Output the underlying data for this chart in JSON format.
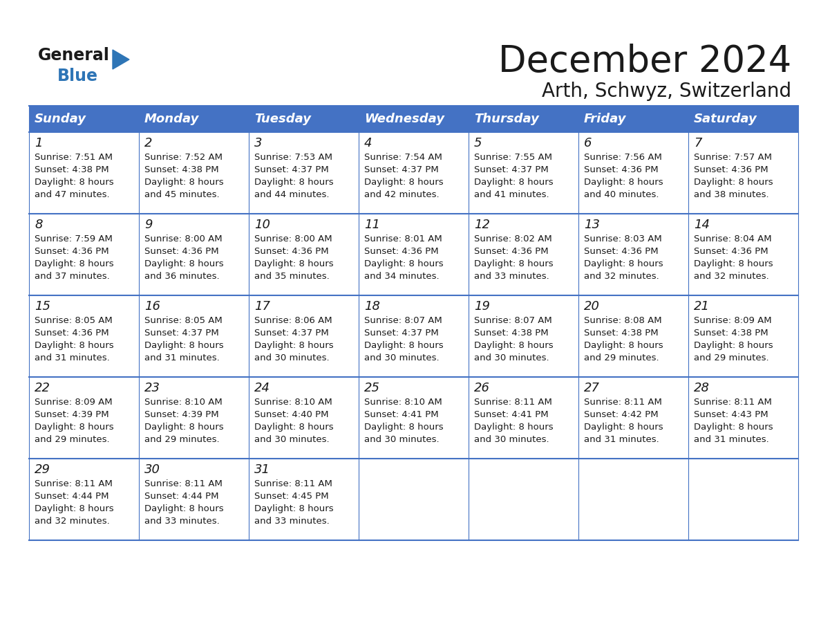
{
  "title": "December 2024",
  "subtitle": "Arth, Schwyz, Switzerland",
  "header_color": "#4472C4",
  "header_text_color": "#FFFFFF",
  "border_color": "#4472C4",
  "day_names": [
    "Sunday",
    "Monday",
    "Tuesday",
    "Wednesday",
    "Thursday",
    "Friday",
    "Saturday"
  ],
  "weeks": [
    [
      {
        "day": 1,
        "sunrise": "7:51 AM",
        "sunset": "4:38 PM",
        "daylight": "8 hours and 47 minutes."
      },
      {
        "day": 2,
        "sunrise": "7:52 AM",
        "sunset": "4:38 PM",
        "daylight": "8 hours and 45 minutes."
      },
      {
        "day": 3,
        "sunrise": "7:53 AM",
        "sunset": "4:37 PM",
        "daylight": "8 hours and 44 minutes."
      },
      {
        "day": 4,
        "sunrise": "7:54 AM",
        "sunset": "4:37 PM",
        "daylight": "8 hours and 42 minutes."
      },
      {
        "day": 5,
        "sunrise": "7:55 AM",
        "sunset": "4:37 PM",
        "daylight": "8 hours and 41 minutes."
      },
      {
        "day": 6,
        "sunrise": "7:56 AM",
        "sunset": "4:36 PM",
        "daylight": "8 hours and 40 minutes."
      },
      {
        "day": 7,
        "sunrise": "7:57 AM",
        "sunset": "4:36 PM",
        "daylight": "8 hours and 38 minutes."
      }
    ],
    [
      {
        "day": 8,
        "sunrise": "7:59 AM",
        "sunset": "4:36 PM",
        "daylight": "8 hours and 37 minutes."
      },
      {
        "day": 9,
        "sunrise": "8:00 AM",
        "sunset": "4:36 PM",
        "daylight": "8 hours and 36 minutes."
      },
      {
        "day": 10,
        "sunrise": "8:00 AM",
        "sunset": "4:36 PM",
        "daylight": "8 hours and 35 minutes."
      },
      {
        "day": 11,
        "sunrise": "8:01 AM",
        "sunset": "4:36 PM",
        "daylight": "8 hours and 34 minutes."
      },
      {
        "day": 12,
        "sunrise": "8:02 AM",
        "sunset": "4:36 PM",
        "daylight": "8 hours and 33 minutes."
      },
      {
        "day": 13,
        "sunrise": "8:03 AM",
        "sunset": "4:36 PM",
        "daylight": "8 hours and 32 minutes."
      },
      {
        "day": 14,
        "sunrise": "8:04 AM",
        "sunset": "4:36 PM",
        "daylight": "8 hours and 32 minutes."
      }
    ],
    [
      {
        "day": 15,
        "sunrise": "8:05 AM",
        "sunset": "4:36 PM",
        "daylight": "8 hours and 31 minutes."
      },
      {
        "day": 16,
        "sunrise": "8:05 AM",
        "sunset": "4:37 PM",
        "daylight": "8 hours and 31 minutes."
      },
      {
        "day": 17,
        "sunrise": "8:06 AM",
        "sunset": "4:37 PM",
        "daylight": "8 hours and 30 minutes."
      },
      {
        "day": 18,
        "sunrise": "8:07 AM",
        "sunset": "4:37 PM",
        "daylight": "8 hours and 30 minutes."
      },
      {
        "day": 19,
        "sunrise": "8:07 AM",
        "sunset": "4:38 PM",
        "daylight": "8 hours and 30 minutes."
      },
      {
        "day": 20,
        "sunrise": "8:08 AM",
        "sunset": "4:38 PM",
        "daylight": "8 hours and 29 minutes."
      },
      {
        "day": 21,
        "sunrise": "8:09 AM",
        "sunset": "4:38 PM",
        "daylight": "8 hours and 29 minutes."
      }
    ],
    [
      {
        "day": 22,
        "sunrise": "8:09 AM",
        "sunset": "4:39 PM",
        "daylight": "8 hours and 29 minutes."
      },
      {
        "day": 23,
        "sunrise": "8:10 AM",
        "sunset": "4:39 PM",
        "daylight": "8 hours and 29 minutes."
      },
      {
        "day": 24,
        "sunrise": "8:10 AM",
        "sunset": "4:40 PM",
        "daylight": "8 hours and 30 minutes."
      },
      {
        "day": 25,
        "sunrise": "8:10 AM",
        "sunset": "4:41 PM",
        "daylight": "8 hours and 30 minutes."
      },
      {
        "day": 26,
        "sunrise": "8:11 AM",
        "sunset": "4:41 PM",
        "daylight": "8 hours and 30 minutes."
      },
      {
        "day": 27,
        "sunrise": "8:11 AM",
        "sunset": "4:42 PM",
        "daylight": "8 hours and 31 minutes."
      },
      {
        "day": 28,
        "sunrise": "8:11 AM",
        "sunset": "4:43 PM",
        "daylight": "8 hours and 31 minutes."
      }
    ],
    [
      {
        "day": 29,
        "sunrise": "8:11 AM",
        "sunset": "4:44 PM",
        "daylight": "8 hours and 32 minutes."
      },
      {
        "day": 30,
        "sunrise": "8:11 AM",
        "sunset": "4:44 PM",
        "daylight": "8 hours and 33 minutes."
      },
      {
        "day": 31,
        "sunrise": "8:11 AM",
        "sunset": "4:45 PM",
        "daylight": "8 hours and 33 minutes."
      },
      null,
      null,
      null,
      null
    ]
  ],
  "logo_general_color": "#1a1a1a",
  "logo_blue_color": "#2E75B6",
  "title_fontsize": 38,
  "subtitle_fontsize": 20,
  "header_fontsize": 13,
  "day_num_fontsize": 13,
  "cell_fontsize": 9.5
}
